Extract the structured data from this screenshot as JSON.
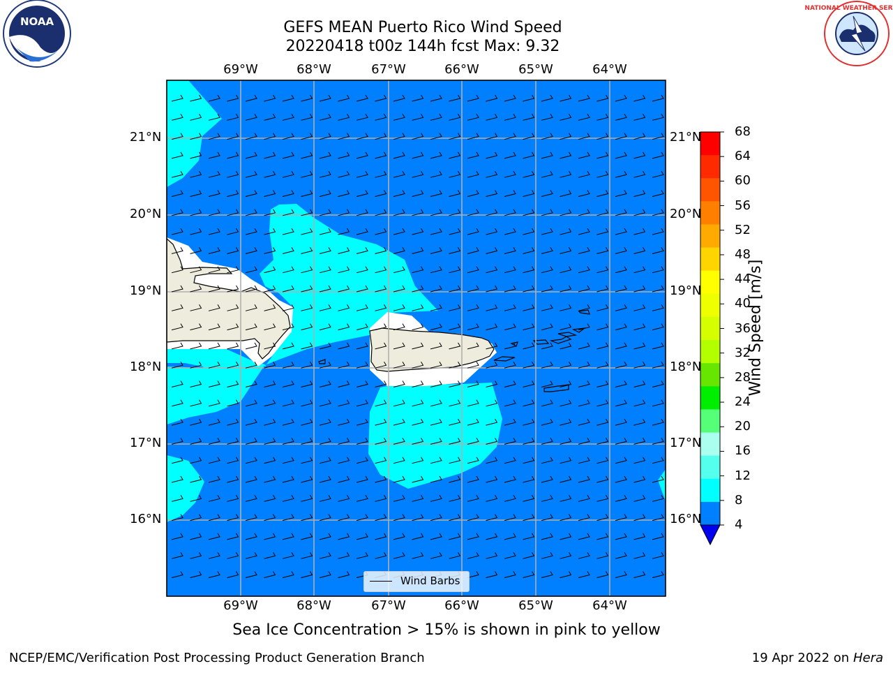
{
  "title_line1": "GEFS MEAN Puerto Rico Wind Speed",
  "title_line2": "20220418 t00z 144h fcst   Max: 9.32",
  "caption": "Sea Ice Concentration > 15% is shown in pink to yellow",
  "footer_left": "NCEP/EMC/Verification Post Processing Product Generation Branch",
  "footer_right_date": "19 Apr 2022 on ",
  "footer_right_host": "Hera",
  "legend_label": "Wind Barbs",
  "logos": {
    "left": "noaa-logo",
    "right": "nws-logo",
    "left_text": "NOAA",
    "right_text": "NATIONAL WEATHER SERVICE"
  },
  "lon_labels": [
    "69°W",
    "68°W",
    "67°W",
    "66°W",
    "65°W",
    "64°W"
  ],
  "lat_labels": [
    "21°N",
    "20°N",
    "19°N",
    "18°N",
    "17°N",
    "16°N"
  ],
  "colorbar": {
    "title": "Wind Speed [m/s]",
    "ticks": [
      "68",
      "64",
      "60",
      "56",
      "52",
      "48",
      "44",
      "40",
      "36",
      "32",
      "28",
      "24",
      "20",
      "16",
      "12",
      "8",
      "4"
    ],
    "colors": [
      "#ff0000",
      "#ff2a00",
      "#ff5500",
      "#ff8000",
      "#ffaa00",
      "#ffd500",
      "#ffff00",
      "#eeff00",
      "#d5ff00",
      "#b3ff00",
      "#66e600",
      "#00ee00",
      "#55ff77",
      "#aaffee",
      "#55ffee",
      "#00ffff",
      "#0080ff"
    ],
    "extend_color": "#0000ee"
  },
  "colors": {
    "ocean": "#0080ff",
    "cyan": "#00ffff",
    "land": "#eeecdc"
  }
}
